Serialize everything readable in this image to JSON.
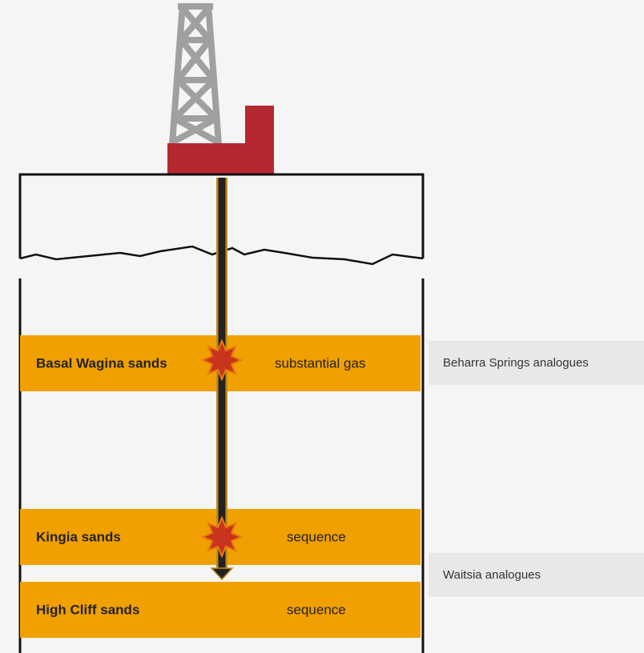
{
  "layers": [
    {
      "name": "Basal Wagina sands",
      "note": "substantial gas"
    },
    {
      "name": "Kingia sands",
      "note": "sequence"
    },
    {
      "name": "High Cliff sands",
      "note": "sequence"
    }
  ],
  "analogues": [
    "Beharra Springs analogues",
    "Waitsia analogues"
  ]
}
